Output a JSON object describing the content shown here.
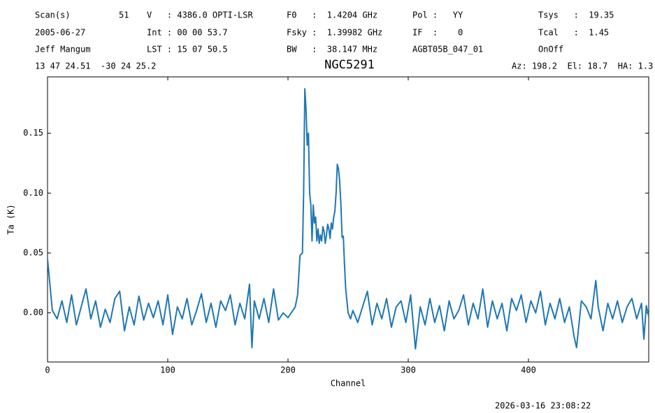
{
  "header": {
    "rows": [
      [
        "Scan(s)",
        "51",
        "V   : 4386.0 OPTI-LSR",
        "F0   :  1.4204 GHz",
        "Pol :   YY",
        "Tsys   :  19.35"
      ],
      [
        "2005-06-27",
        "Int : 00 00 53.7",
        "Fsky :  1.39982 GHz",
        "IF  :    0",
        "Tcal   :  1.45"
      ],
      [
        "Jeff Mangum",
        "LST : 15 07 50.5",
        "BW   :  38.147 MHz",
        "AGBT05B_047_01",
        "OnOff"
      ],
      [
        "13 47 24.51  -30 24 25.2",
        "Az: 198.2  El: 18.7  HA: 1.3"
      ]
    ],
    "timestamp": "2026-03-16 23:08:22"
  },
  "chart_data": {
    "type": "line",
    "title": "NGC5291",
    "xlabel": "Channel",
    "ylabel": "Ta (K)",
    "xlim": [
      0,
      500
    ],
    "ylim": [
      -0.041,
      0.197
    ],
    "xticks": [
      0,
      100,
      200,
      300,
      400
    ],
    "yticks": [
      {
        "value": 0,
        "label": "0.00"
      },
      0.05,
      {
        "value": 0.1,
        "label": "0.10"
      },
      0.15
    ],
    "x": [
      0,
      4,
      8,
      12,
      16,
      20,
      24,
      28,
      32,
      36,
      40,
      44,
      48,
      52,
      56,
      60,
      64,
      68,
      72,
      76,
      80,
      84,
      88,
      92,
      96,
      100,
      104,
      108,
      112,
      116,
      120,
      124,
      128,
      132,
      136,
      140,
      144,
      148,
      152,
      156,
      160,
      164,
      168,
      170,
      172,
      176,
      180,
      184,
      188,
      192,
      196,
      200,
      204,
      206,
      208,
      210,
      212,
      213,
      214,
      215,
      216,
      217,
      218,
      219,
      220,
      221,
      222,
      223,
      224,
      225,
      226,
      227,
      228,
      229,
      230,
      231,
      232,
      233,
      234,
      235,
      236,
      237,
      238,
      239,
      240,
      241,
      242,
      243,
      244,
      245,
      246,
      247,
      248,
      249,
      250,
      252,
      254,
      258,
      262,
      266,
      270,
      274,
      278,
      282,
      286,
      290,
      294,
      298,
      302,
      306,
      310,
      314,
      318,
      322,
      326,
      330,
      334,
      338,
      342,
      346,
      350,
      354,
      358,
      362,
      366,
      370,
      374,
      378,
      382,
      386,
      390,
      394,
      398,
      402,
      406,
      410,
      414,
      418,
      422,
      426,
      430,
      434,
      438,
      440,
      444,
      448,
      452,
      456,
      458,
      462,
      466,
      470,
      474,
      478,
      482,
      486,
      490,
      494,
      496,
      498,
      500
    ],
    "series": [
      {
        "name": "Ta",
        "color": "#1f77b4",
        "values": [
          0.045,
          0.002,
          -0.005,
          0.01,
          -0.008,
          0.015,
          -0.01,
          0.005,
          0.02,
          -0.005,
          0.01,
          -0.012,
          0.003,
          -0.008,
          0.012,
          0.018,
          -0.015,
          0.005,
          -0.01,
          0.014,
          -0.006,
          0.008,
          -0.004,
          0.01,
          -0.01,
          0.015,
          -0.018,
          0.005,
          -0.005,
          0.012,
          -0.01,
          0.002,
          0.016,
          -0.008,
          0.008,
          -0.012,
          0.01,
          0.002,
          0.015,
          -0.01,
          0.008,
          -0.005,
          0.024,
          -0.029,
          0.01,
          -0.005,
          0.012,
          -0.008,
          0.02,
          -0.006,
          0.0,
          -0.004,
          0.002,
          0.005,
          0.015,
          0.048,
          0.05,
          0.1,
          0.187,
          0.17,
          0.14,
          0.15,
          0.1,
          0.09,
          0.06,
          0.09,
          0.075,
          0.08,
          0.06,
          0.07,
          0.058,
          0.065,
          0.06,
          0.072,
          0.068,
          0.058,
          0.065,
          0.074,
          0.07,
          0.062,
          0.075,
          0.07,
          0.08,
          0.085,
          0.1,
          0.124,
          0.12,
          0.11,
          0.09,
          0.063,
          0.064,
          0.04,
          0.02,
          0.01,
          0.0,
          -0.005,
          0.002,
          -0.008,
          0.005,
          0.018,
          -0.01,
          0.008,
          -0.005,
          0.012,
          -0.012,
          0.005,
          0.01,
          -0.008,
          0.015,
          -0.03,
          0.005,
          -0.01,
          0.012,
          -0.008,
          0.006,
          -0.015,
          0.01,
          -0.005,
          0.002,
          0.015,
          -0.01,
          0.008,
          -0.005,
          0.02,
          -0.012,
          0.01,
          -0.005,
          0.008,
          -0.015,
          0.012,
          0.002,
          0.015,
          -0.008,
          0.01,
          0.0,
          0.018,
          -0.01,
          0.008,
          -0.005,
          0.012,
          -0.008,
          0.005,
          -0.02,
          -0.029,
          0.01,
          0.005,
          -0.005,
          0.027,
          0.005,
          -0.015,
          0.008,
          -0.005,
          0.01,
          -0.008,
          0.005,
          0.012,
          -0.005,
          0.008,
          -0.022,
          0.006,
          -0.003
        ]
      }
    ]
  }
}
